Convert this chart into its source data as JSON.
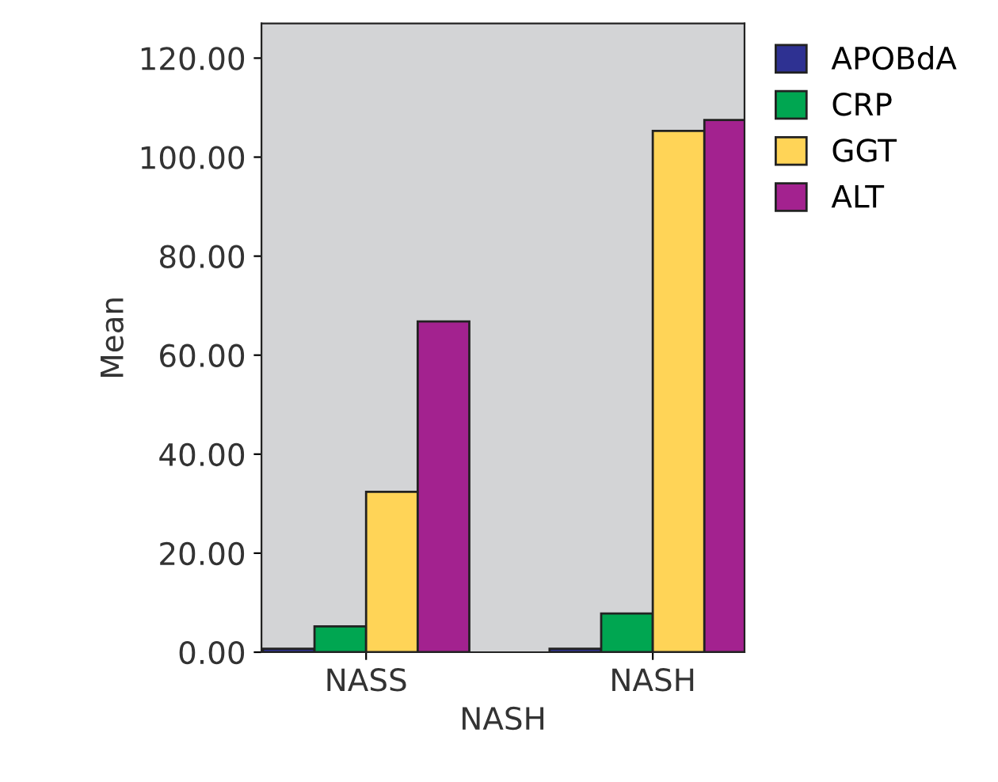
{
  "chart_data": {
    "type": "bar",
    "xlabel": "NASH",
    "ylabel": "Mean",
    "categories": [
      "NASS",
      "NASH"
    ],
    "series": [
      {
        "name": "APOBdA",
        "color": "#2e3192",
        "values": [
          0.7,
          0.7
        ]
      },
      {
        "name": "CRP",
        "color": "#00a651",
        "values": [
          5.2,
          7.8
        ]
      },
      {
        "name": "GGT",
        "color": "#ffd457",
        "values": [
          32.4,
          105.3
        ]
      },
      {
        "name": "ALT",
        "color": "#a3228f",
        "values": [
          66.8,
          107.5
        ]
      }
    ],
    "ylim": [
      0,
      127
    ],
    "yticks": [
      {
        "value": 0,
        "label": "0.00"
      },
      {
        "value": 20,
        "label": "20.00"
      },
      {
        "value": 40,
        "label": "40.00"
      },
      {
        "value": 60,
        "label": "60.00"
      },
      {
        "value": 80,
        "label": "80.00"
      },
      {
        "value": 100,
        "label": "100.00"
      },
      {
        "value": 120,
        "label": "120.00"
      }
    ],
    "grid": false,
    "legend": "top right"
  }
}
